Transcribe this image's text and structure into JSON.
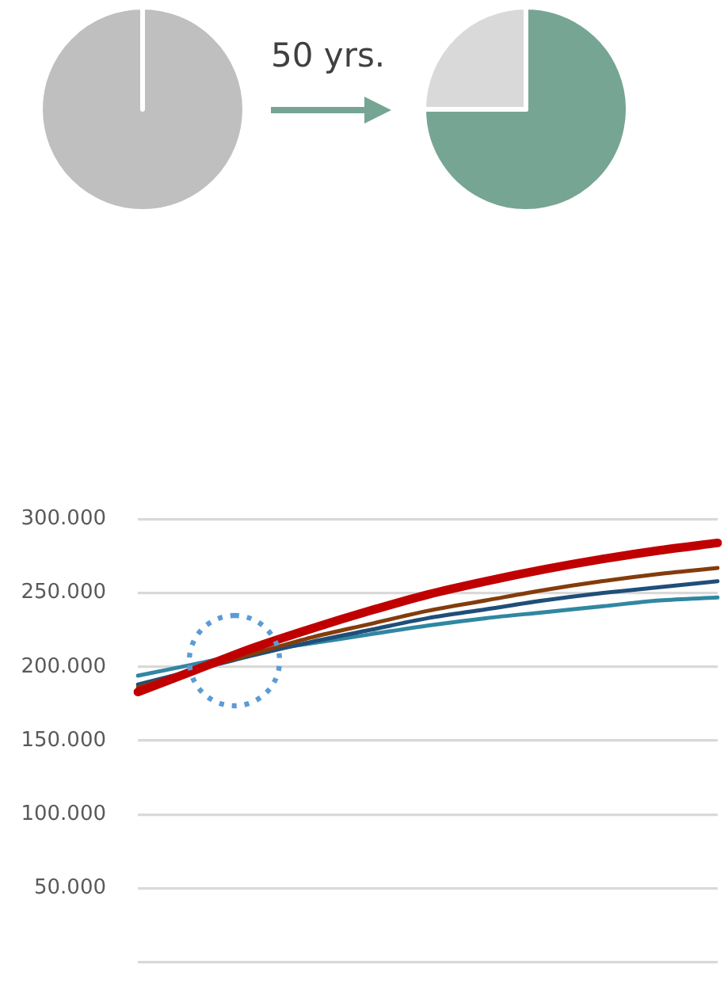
{
  "chart_data": [
    {
      "type": "pie",
      "categories": [
        null
      ],
      "values": [
        100
      ],
      "colors": [
        "#bfbfbf"
      ],
      "annotations": [
        "50 yrs."
      ]
    },
    {
      "type": "pie",
      "categories": [
        null,
        null
      ],
      "values": [
        75,
        25
      ],
      "colors": [
        "#77a593",
        "#d9d9d9"
      ]
    },
    {
      "type": "line",
      "categories": [
        null,
        null,
        null,
        null,
        null,
        null,
        null,
        null,
        null,
        null,
        null
      ],
      "series": [
        {
          "color": "#c00000",
          "values": [
            183000,
            198000,
            213000,
            226000,
            238000,
            249000,
            258000,
            266000,
            273000,
            279000,
            284000
          ]
        },
        {
          "color": "#843c0c",
          "values": [
            186000,
            198000,
            209000,
            220000,
            229000,
            238000,
            245000,
            252000,
            258000,
            263000,
            267000
          ]
        },
        {
          "color": "#1f4e79",
          "values": [
            188000,
            198000,
            208000,
            217000,
            225000,
            233000,
            239000,
            245000,
            250000,
            254000,
            258000
          ]
        },
        {
          "color": "#3087a2",
          "values": [
            194000,
            202000,
            210000,
            216000,
            222000,
            228000,
            233000,
            237000,
            241000,
            245000,
            247000
          ]
        }
      ],
      "ylim": [
        0,
        300000
      ],
      "yticks": [
        {
          "value": 0,
          "label": null
        },
        {
          "value": 50000,
          "label": "50.000"
        },
        {
          "value": 100000,
          "label": "100.000"
        },
        {
          "value": 150000,
          "label": "150.000"
        },
        {
          "value": 200000,
          "label": "200.000"
        },
        {
          "value": 250000,
          "label": "250.000"
        },
        {
          "value": 300000,
          "label": "300.000"
        }
      ],
      "grid": "y",
      "marker": "none",
      "line_style": "solid"
    }
  ]
}
